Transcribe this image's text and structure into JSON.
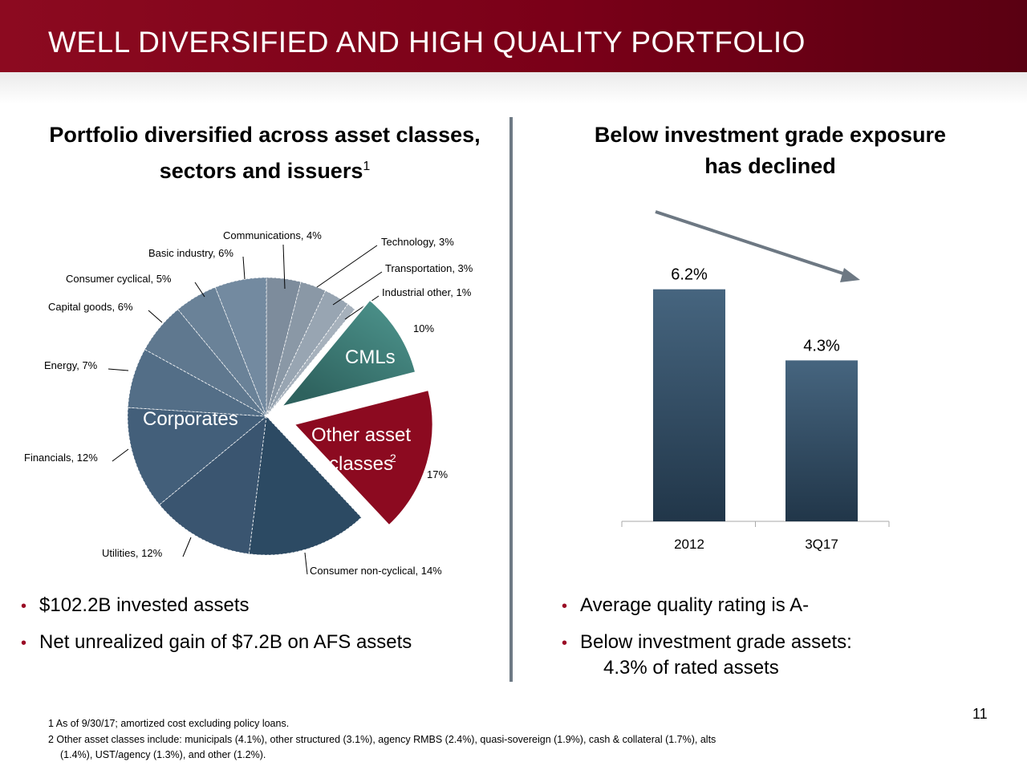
{
  "header": {
    "title": "WELL DIVERSIFIED AND HIGH QUALITY PORTFOLIO"
  },
  "left": {
    "heading_line1": "Portfolio diversified across asset classes,",
    "heading_line2": "sectors and issuers",
    "heading_sup": "1",
    "bullets": [
      "$102.2B invested assets",
      "Net unrealized gain of $7.2B on AFS assets"
    ]
  },
  "right": {
    "heading_line1": "Below investment grade exposure",
    "heading_line2": "has declined",
    "bullets": [
      "Average quality rating is A-",
      "Below investment grade assets:"
    ],
    "bullet2_cont": "4.3% of rated assets"
  },
  "footnotes": {
    "note1": "1  As of 9/30/17; amortized cost excluding policy loans.",
    "note2": "2  Other asset classes include: municipals (4.1%), other structured (3.1%), agency RMBS (2.4%), quasi-sovereign (1.9%), cash & collateral (1.7%), alts",
    "note2_cont": "(1.4%), UST/agency (1.3%), and other (1.2%)."
  },
  "page_number": "11",
  "chart_data": [
    {
      "type": "pie",
      "group_labels": {
        "corporates": "Corporates",
        "cmls": "CMLs",
        "other_line1": "Other asset",
        "other_line2": "classes",
        "other_sup": "2"
      },
      "slices": [
        {
          "label": "Communications, 4%",
          "value": 4,
          "group": "corporates",
          "color": "#7d8c9c"
        },
        {
          "label": "Technology, 3%",
          "value": 3,
          "group": "corporates",
          "color": "#8a98a6"
        },
        {
          "label": "Transportation, 3%",
          "value": 3,
          "group": "corporates",
          "color": "#98a5b2"
        },
        {
          "label": "Industrial other, 1%",
          "value": 1,
          "group": "corporates",
          "color": "#a6b1bc"
        },
        {
          "label": "10%",
          "value": 10,
          "group": "cmls",
          "color": "#3f7f7a"
        },
        {
          "label": "17%",
          "value": 17,
          "group": "other",
          "color": "#8c0a20"
        },
        {
          "label": "Consumer non-cyclical, 14%",
          "value": 14,
          "group": "corporates",
          "color": "#2c4a63"
        },
        {
          "label": "Utilities, 12%",
          "value": 12,
          "group": "corporates",
          "color": "#3a5570"
        },
        {
          "label": "Financials, 12%",
          "value": 12,
          "group": "corporates",
          "color": "#435f7a"
        },
        {
          "label": "Energy, 7%",
          "value": 7,
          "group": "corporates",
          "color": "#536e87"
        },
        {
          "label": "Capital goods, 6%",
          "value": 6,
          "group": "corporates",
          "color": "#5f788f"
        },
        {
          "label": "Consumer cyclical, 5%",
          "value": 5,
          "group": "corporates",
          "color": "#6a8298"
        },
        {
          "label": "Basic industry, 6%",
          "value": 6,
          "group": "corporates",
          "color": "#738aa0"
        }
      ]
    },
    {
      "type": "bar",
      "categories": [
        "2012",
        "3Q17"
      ],
      "values": [
        6.2,
        4.3
      ],
      "value_labels": [
        "6.2%",
        "4.3%"
      ],
      "unit": "%",
      "ylim": [
        0,
        7.5
      ],
      "trend_arrow": "declining",
      "colors": {
        "top": "#46657f",
        "bottom": "#213649"
      }
    }
  ]
}
